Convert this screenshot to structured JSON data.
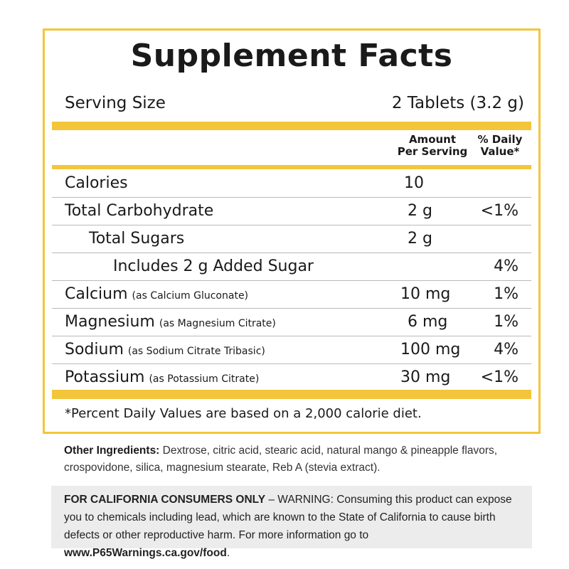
{
  "panel": {
    "title": "Supplement Facts",
    "serving_size_label": "Serving Size",
    "serving_size_value": "2 Tablets (3.2 g)",
    "header_amount_line1": "Amount",
    "header_amount_line2": "Per Serving",
    "header_dv_line1": "% Daily",
    "header_dv_line2": "Value*",
    "rows": [
      {
        "label": "Calories",
        "sub": "",
        "amount": "10",
        "dv": ""
      },
      {
        "label": "Total Carbohydrate",
        "sub": "",
        "amount": "2 g",
        "dv": "<1%"
      },
      {
        "label": "Total Sugars",
        "sub": "",
        "amount": "2 g",
        "dv": ""
      },
      {
        "label": "Includes 2 g Added Sugar",
        "sub": "",
        "amount": "",
        "dv": "4%"
      },
      {
        "label": "Calcium",
        "sub": "(as Calcium Gluconate)",
        "amount": "10 mg",
        "dv": "1%"
      },
      {
        "label": "Magnesium",
        "sub": "(as Magnesium Citrate)",
        "amount": "6 mg",
        "dv": "1%"
      },
      {
        "label": "Sodium",
        "sub": "(as Sodium Citrate Tribasic)",
        "amount": "100 mg",
        "dv": "4%"
      },
      {
        "label": "Potassium",
        "sub": "(as Potassium Citrate)",
        "amount": "30 mg",
        "dv": "<1%"
      }
    ],
    "footnote": "*Percent Daily Values are based on a 2,000 calorie diet.",
    "accent_color": "#f3c53a"
  },
  "ingredients": {
    "label": "Other Ingredients:",
    "text": " Dextrose, citric acid, stearic acid, natural mango & pineapple flavors, crospovidone, silica, magnesium stearate, Reb A (stevia extract)."
  },
  "warning": {
    "label": "FOR CALIFORNIA CONSUMERS ONLY",
    "text": " – WARNING: Consuming this product can expose you to chemicals including lead, which are known to the State of California to cause birth defects or other reproductive harm. For more information go to ",
    "link": "www.P65Warnings.ca.gov/food",
    "end": "."
  }
}
